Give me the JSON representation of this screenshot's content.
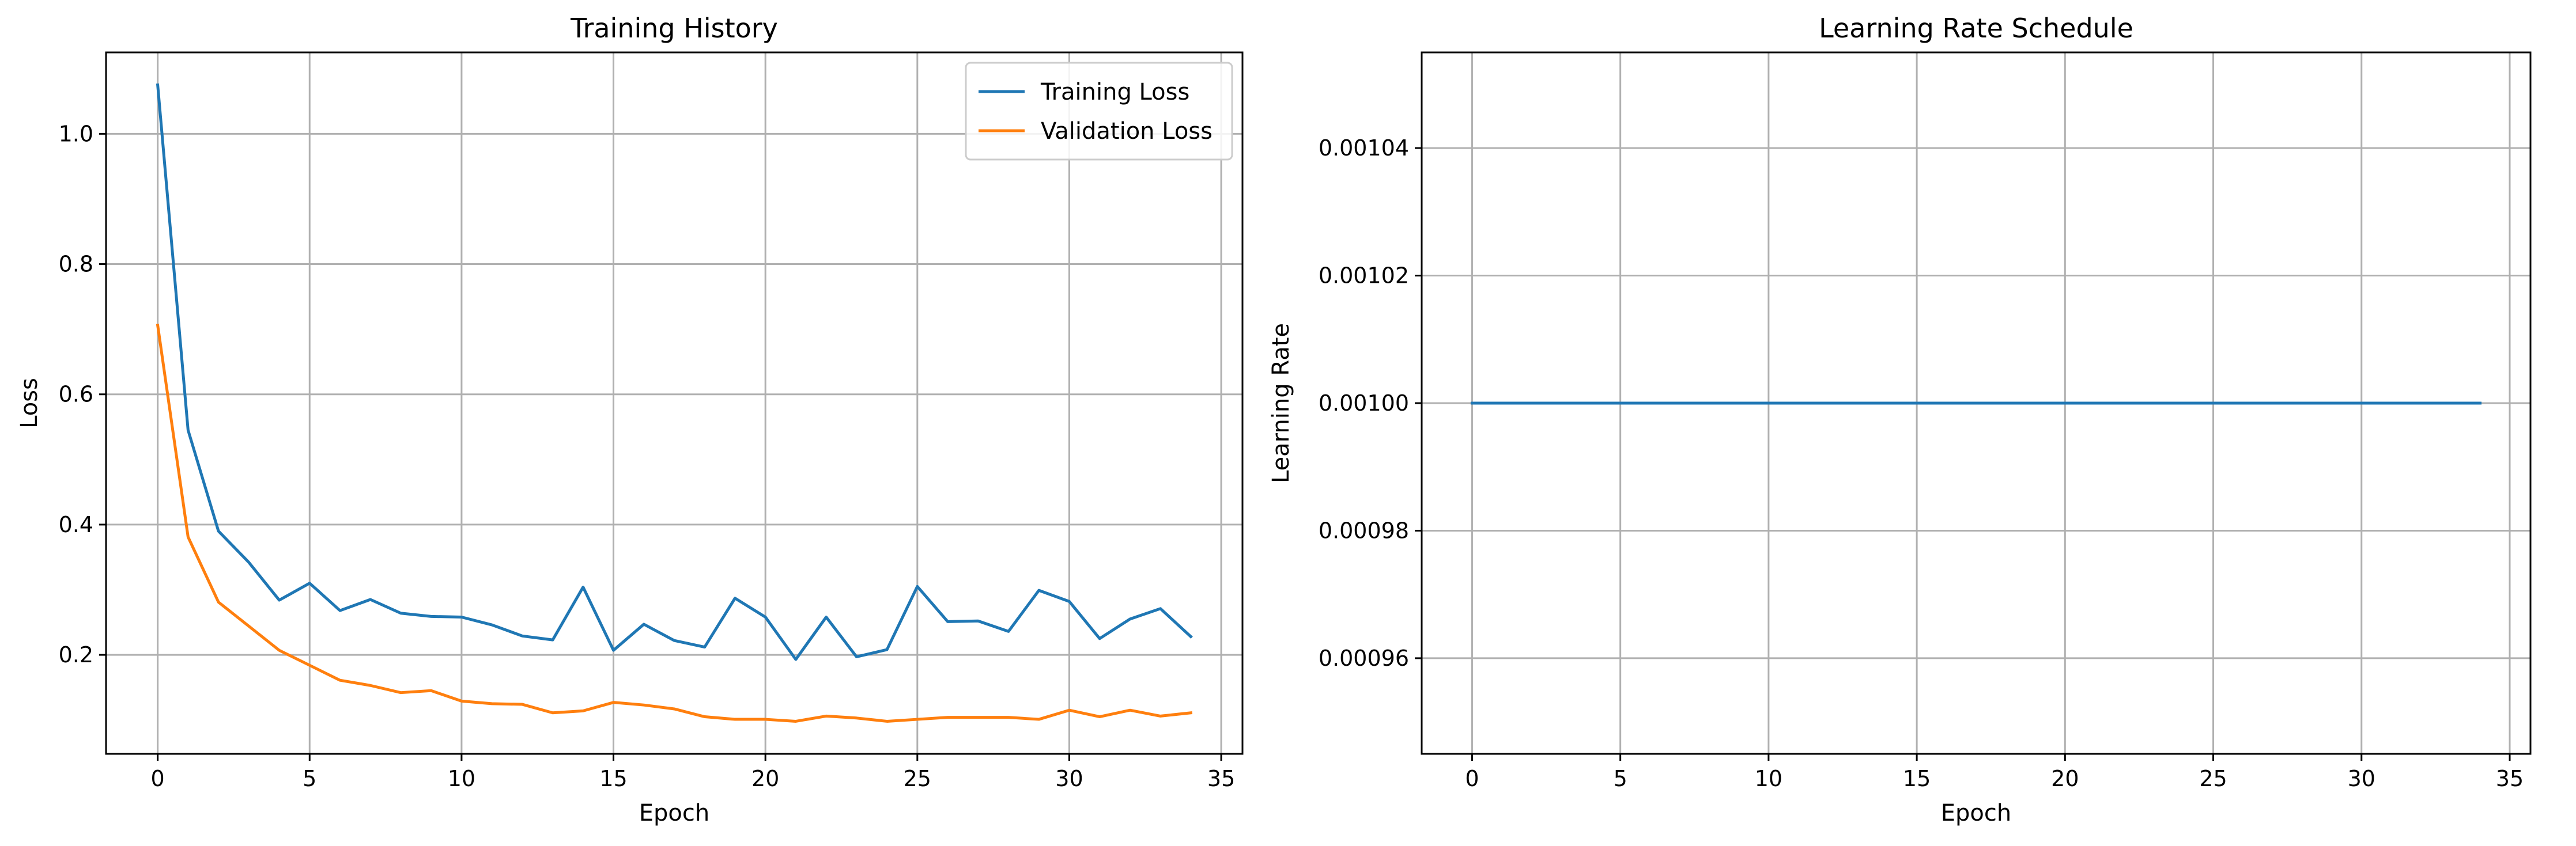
{
  "chart_data": [
    {
      "type": "line",
      "title": "Training History",
      "xlabel": "Epoch",
      "ylabel": "Loss",
      "xlim": [
        -1.7,
        35.7
      ],
      "ylim": [
        0.048,
        1.125
      ],
      "xticks": [
        0,
        5,
        10,
        15,
        20,
        25,
        30,
        35
      ],
      "yticks": [
        0.2,
        0.4,
        0.6,
        0.8,
        1.0
      ],
      "ytick_labels": [
        "0.2",
        "0.4",
        "0.6",
        "0.8",
        "1.0"
      ],
      "grid": true,
      "legend_position": "top-right",
      "x": [
        0,
        1,
        2,
        3,
        4,
        5,
        6,
        7,
        8,
        9,
        10,
        11,
        12,
        13,
        14,
        15,
        16,
        17,
        18,
        19,
        20,
        21,
        22,
        23,
        24,
        25,
        26,
        27,
        28,
        29,
        30,
        31,
        32,
        33,
        34
      ],
      "series": [
        {
          "name": "Training Loss",
          "color": "#1f77b4",
          "values": [
            1.075,
            0.545,
            0.39,
            0.342,
            0.284,
            0.31,
            0.268,
            0.285,
            0.264,
            0.259,
            0.258,
            0.246,
            0.229,
            0.223,
            0.304,
            0.207,
            0.247,
            0.222,
            0.212,
            0.287,
            0.258,
            0.193,
            0.258,
            0.197,
            0.208,
            0.305,
            0.251,
            0.252,
            0.236,
            0.299,
            0.282,
            0.225,
            0.255,
            0.271,
            0.228
          ]
        },
        {
          "name": "Validation Loss",
          "color": "#ff7f0e",
          "values": [
            0.706,
            0.381,
            0.281,
            0.244,
            0.207,
            0.184,
            0.161,
            0.153,
            0.142,
            0.145,
            0.129,
            0.125,
            0.124,
            0.111,
            0.114,
            0.127,
            0.123,
            0.117,
            0.105,
            0.101,
            0.101,
            0.098,
            0.106,
            0.103,
            0.098,
            0.101,
            0.104,
            0.104,
            0.104,
            0.101,
            0.115,
            0.105,
            0.115,
            0.106,
            0.111
          ]
        }
      ]
    },
    {
      "type": "line",
      "title": "Learning Rate Schedule",
      "xlabel": "Epoch",
      "ylabel": "Learning Rate",
      "xlim": [
        -1.7,
        35.7
      ],
      "ylim": [
        0.000945,
        0.001055
      ],
      "xticks": [
        0,
        5,
        10,
        15,
        20,
        25,
        30,
        35
      ],
      "yticks": [
        0.00096,
        0.00098,
        0.001,
        0.00102,
        0.00104
      ],
      "ytick_labels": [
        "0.00096",
        "0.00098",
        "0.00100",
        "0.00102",
        "0.00104"
      ],
      "grid": true,
      "x": [
        0,
        1,
        2,
        3,
        4,
        5,
        6,
        7,
        8,
        9,
        10,
        11,
        12,
        13,
        14,
        15,
        16,
        17,
        18,
        19,
        20,
        21,
        22,
        23,
        24,
        25,
        26,
        27,
        28,
        29,
        30,
        31,
        32,
        33,
        34
      ],
      "series": [
        {
          "color": "#1f77b4",
          "values": [
            0.001,
            0.001,
            0.001,
            0.001,
            0.001,
            0.001,
            0.001,
            0.001,
            0.001,
            0.001,
            0.001,
            0.001,
            0.001,
            0.001,
            0.001,
            0.001,
            0.001,
            0.001,
            0.001,
            0.001,
            0.001,
            0.001,
            0.001,
            0.001,
            0.001,
            0.001,
            0.001,
            0.001,
            0.001,
            0.001,
            0.001,
            0.001,
            0.001,
            0.001,
            0.001
          ]
        }
      ]
    }
  ]
}
